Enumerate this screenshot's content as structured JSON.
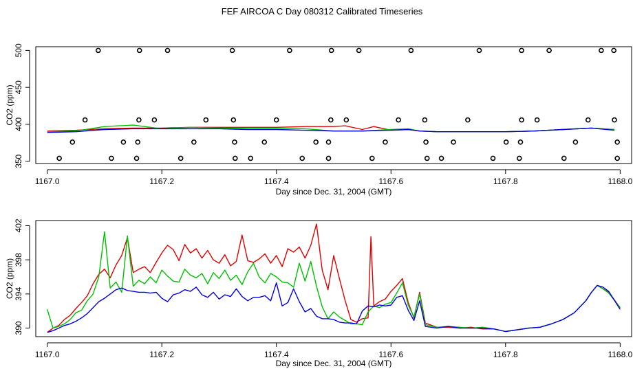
{
  "title": "FEF AIRCOA C  Day 080312  Calibrated Timeseries",
  "colors": {
    "red": "#e00000",
    "green": "#00c000",
    "blue": "#0000dd",
    "axis": "#000000"
  },
  "chart_data": [
    {
      "type": "scatter+line",
      "xlabel": "Day since Dec. 31, 2004 (GMT)",
      "ylabel": "CO2 (ppm)",
      "xlim": [
        1166.98,
        1168.02
      ],
      "ylim": [
        347,
        505
      ],
      "xticks": [
        1167.0,
        1167.2,
        1167.4,
        1167.6,
        1167.8,
        1168.0
      ],
      "xtick_labels": [
        "1167.0",
        "1167.2",
        "1167.4",
        "1167.6",
        "1167.8",
        "1168.0"
      ],
      "yticks": [
        350,
        400,
        450,
        500
      ],
      "ytick_labels": [
        "350",
        "400",
        "450",
        "500"
      ],
      "points": [
        {
          "x": 1167.089,
          "y": 500
        },
        {
          "x": 1167.161,
          "y": 500
        },
        {
          "x": 1167.21,
          "y": 500
        },
        {
          "x": 1167.323,
          "y": 500
        },
        {
          "x": 1167.423,
          "y": 500
        },
        {
          "x": 1167.496,
          "y": 500
        },
        {
          "x": 1167.544,
          "y": 500
        },
        {
          "x": 1167.635,
          "y": 500
        },
        {
          "x": 1167.754,
          "y": 500
        },
        {
          "x": 1167.828,
          "y": 500
        },
        {
          "x": 1167.876,
          "y": 500
        },
        {
          "x": 1167.967,
          "y": 500
        },
        {
          "x": 1167.989,
          "y": 500
        },
        {
          "x": 1167.066,
          "y": 406
        },
        {
          "x": 1167.16,
          "y": 406
        },
        {
          "x": 1167.187,
          "y": 406
        },
        {
          "x": 1167.277,
          "y": 406
        },
        {
          "x": 1167.325,
          "y": 406
        },
        {
          "x": 1167.4,
          "y": 406
        },
        {
          "x": 1167.495,
          "y": 406
        },
        {
          "x": 1167.522,
          "y": 406
        },
        {
          "x": 1167.613,
          "y": 406
        },
        {
          "x": 1167.659,
          "y": 406
        },
        {
          "x": 1167.734,
          "y": 406
        },
        {
          "x": 1167.828,
          "y": 406
        },
        {
          "x": 1167.855,
          "y": 406
        },
        {
          "x": 1167.944,
          "y": 406
        },
        {
          "x": 1167.99,
          "y": 406
        },
        {
          "x": 1167.044,
          "y": 376
        },
        {
          "x": 1167.133,
          "y": 376
        },
        {
          "x": 1167.158,
          "y": 376
        },
        {
          "x": 1167.256,
          "y": 376
        },
        {
          "x": 1167.327,
          "y": 376
        },
        {
          "x": 1167.379,
          "y": 376
        },
        {
          "x": 1167.469,
          "y": 376
        },
        {
          "x": 1167.491,
          "y": 376
        },
        {
          "x": 1167.59,
          "y": 376
        },
        {
          "x": 1167.661,
          "y": 376
        },
        {
          "x": 1167.709,
          "y": 376
        },
        {
          "x": 1167.801,
          "y": 376
        },
        {
          "x": 1167.826,
          "y": 376
        },
        {
          "x": 1167.922,
          "y": 376
        },
        {
          "x": 1167.995,
          "y": 376
        },
        {
          "x": 1167.021,
          "y": 354
        },
        {
          "x": 1167.112,
          "y": 354
        },
        {
          "x": 1167.156,
          "y": 354
        },
        {
          "x": 1167.233,
          "y": 354
        },
        {
          "x": 1167.328,
          "y": 354
        },
        {
          "x": 1167.355,
          "y": 354
        },
        {
          "x": 1167.445,
          "y": 354
        },
        {
          "x": 1167.491,
          "y": 354
        },
        {
          "x": 1167.567,
          "y": 354
        },
        {
          "x": 1167.663,
          "y": 354
        },
        {
          "x": 1167.688,
          "y": 354
        },
        {
          "x": 1167.778,
          "y": 354
        },
        {
          "x": 1167.824,
          "y": 354
        },
        {
          "x": 1167.902,
          "y": 354
        },
        {
          "x": 1167.995,
          "y": 354
        }
      ],
      "series": [
        {
          "name": "red",
          "color": "#e00000",
          "x": [
            1167.0,
            1167.05,
            1167.1,
            1167.15,
            1167.2,
            1167.25,
            1167.3,
            1167.35,
            1167.4,
            1167.45,
            1167.5,
            1167.52,
            1167.55,
            1167.57,
            1167.6,
            1167.63,
            1167.65,
            1167.68,
            1167.75,
            1167.8,
            1167.85,
            1167.9,
            1167.95,
            1167.99
          ],
          "values": [
            391,
            392,
            394,
            395,
            395,
            396,
            396,
            396,
            396,
            397,
            397,
            398,
            393,
            397,
            392,
            393,
            391,
            390,
            390,
            390,
            391,
            393,
            395,
            393
          ]
        },
        {
          "name": "green",
          "color": "#00c000",
          "x": [
            1167.0,
            1167.05,
            1167.1,
            1167.15,
            1167.2,
            1167.25,
            1167.3,
            1167.35,
            1167.4,
            1167.45,
            1167.5,
            1167.55,
            1167.6,
            1167.63,
            1167.65,
            1167.68,
            1167.75,
            1167.8,
            1167.85,
            1167.9,
            1167.95,
            1167.99
          ],
          "values": [
            390,
            391,
            397,
            399,
            394,
            396,
            395,
            395,
            395,
            394,
            391,
            391,
            393,
            394,
            391,
            390,
            390,
            390,
            391,
            393,
            395,
            393
          ]
        },
        {
          "name": "blue",
          "color": "#0000dd",
          "x": [
            1167.0,
            1167.05,
            1167.1,
            1167.15,
            1167.2,
            1167.25,
            1167.3,
            1167.35,
            1167.4,
            1167.45,
            1167.5,
            1167.55,
            1167.6,
            1167.63,
            1167.65,
            1167.68,
            1167.75,
            1167.8,
            1167.85,
            1167.9,
            1167.95,
            1167.99
          ],
          "values": [
            389,
            390,
            393,
            394,
            394,
            394,
            394,
            393,
            393,
            392,
            391,
            391,
            392,
            393,
            391,
            390,
            390,
            390,
            391,
            393,
            395,
            392
          ]
        }
      ]
    },
    {
      "type": "line",
      "xlabel": "Day since Dec. 31, 2004 (GMT)",
      "ylabel": "CO2 (ppm)",
      "xlim": [
        1166.98,
        1168.02
      ],
      "ylim": [
        389.0,
        402.6
      ],
      "xticks": [
        1167.0,
        1167.2,
        1167.4,
        1167.6,
        1167.8,
        1168.0
      ],
      "xtick_labels": [
        "1167.0",
        "1167.2",
        "1167.4",
        "1167.6",
        "1167.8",
        "1168.0"
      ],
      "yticks": [
        390,
        394,
        398,
        402
      ],
      "ytick_labels": [
        "390",
        "394",
        "398",
        "402"
      ],
      "series": [
        {
          "name": "red",
          "color": "#e00000",
          "x": [
            1167.0,
            1167.01,
            1167.02,
            1167.03,
            1167.04,
            1167.05,
            1167.06,
            1167.07,
            1167.08,
            1167.09,
            1167.1,
            1167.11,
            1167.12,
            1167.13,
            1167.14,
            1167.15,
            1167.16,
            1167.17,
            1167.18,
            1167.19,
            1167.2,
            1167.21,
            1167.22,
            1167.23,
            1167.24,
            1167.25,
            1167.26,
            1167.27,
            1167.28,
            1167.29,
            1167.3,
            1167.31,
            1167.32,
            1167.33,
            1167.34,
            1167.35,
            1167.36,
            1167.37,
            1167.38,
            1167.39,
            1167.4,
            1167.41,
            1167.42,
            1167.43,
            1167.44,
            1167.45,
            1167.46,
            1167.47,
            1167.48,
            1167.49,
            1167.5,
            1167.51,
            1167.52,
            1167.53,
            1167.54,
            1167.55,
            1167.56,
            1167.565,
            1167.57,
            1167.58,
            1167.59,
            1167.6,
            1167.61,
            1167.62,
            1167.63,
            1167.64,
            1167.65,
            1167.66,
            1167.68,
            1167.7,
            1167.72,
            1167.74,
            1167.76,
            1167.78,
            1167.8,
            1167.82,
            1167.84,
            1167.86,
            1167.88,
            1167.9,
            1167.92,
            1167.94,
            1167.95,
            1167.96,
            1167.97,
            1167.98,
            1168.0
          ],
          "values": [
            389.5,
            390.0,
            390.3,
            391.0,
            391.5,
            392.3,
            393.0,
            393.8,
            395.2,
            396.3,
            396.9,
            395.9,
            397.4,
            398.5,
            400.6,
            396.5,
            396.9,
            397.2,
            396.5,
            397.7,
            398.8,
            399.7,
            399.2,
            397.9,
            399.8,
            398.8,
            399.3,
            398.2,
            399.1,
            398.0,
            397.6,
            398.6,
            397.3,
            397.8,
            400.9,
            397.9,
            397.7,
            398.1,
            398.7,
            397.6,
            398.5,
            397.2,
            399.3,
            398.9,
            399.5,
            398.2,
            399.7,
            402.2,
            396.8,
            394.5,
            398.5,
            395.8,
            393.2,
            391.0,
            390.7,
            391.1,
            391.2,
            400.7,
            392.6,
            393.1,
            393.4,
            394.3,
            395.0,
            395.8,
            393.0,
            391.2,
            394.2,
            390.6,
            390.1,
            390.1,
            390.0,
            390.1,
            389.9,
            389.9,
            389.6,
            389.8,
            390.0,
            390.1,
            390.5,
            391.0,
            391.8,
            393.2,
            394.2,
            395.0,
            394.6,
            394.2,
            392.4
          ]
        },
        {
          "name": "green",
          "color": "#00c000",
          "x": [
            1167.0,
            1167.01,
            1167.02,
            1167.03,
            1167.04,
            1167.05,
            1167.06,
            1167.07,
            1167.08,
            1167.09,
            1167.1,
            1167.11,
            1167.12,
            1167.13,
            1167.14,
            1167.15,
            1167.16,
            1167.17,
            1167.18,
            1167.19,
            1167.2,
            1167.21,
            1167.22,
            1167.23,
            1167.24,
            1167.25,
            1167.26,
            1167.27,
            1167.28,
            1167.29,
            1167.3,
            1167.31,
            1167.32,
            1167.33,
            1167.34,
            1167.35,
            1167.36,
            1167.37,
            1167.38,
            1167.39,
            1167.4,
            1167.41,
            1167.42,
            1167.43,
            1167.44,
            1167.45,
            1167.46,
            1167.47,
            1167.48,
            1167.49,
            1167.5,
            1167.51,
            1167.52,
            1167.53,
            1167.54,
            1167.55,
            1167.56,
            1167.57,
            1167.58,
            1167.59,
            1167.6,
            1167.61,
            1167.62,
            1167.63,
            1167.64,
            1167.65,
            1167.66,
            1167.68,
            1167.7,
            1167.72,
            1167.74,
            1167.76,
            1167.78,
            1167.8,
            1167.82,
            1167.84,
            1167.86,
            1167.88,
            1167.9,
            1167.92,
            1167.94,
            1167.95,
            1167.96,
            1167.97,
            1167.98,
            1168.0
          ],
          "values": [
            392.2,
            390.0,
            390.2,
            390.5,
            391.0,
            391.8,
            392.1,
            393.2,
            394.0,
            396.0,
            401.3,
            394.7,
            395.4,
            394.2,
            400.8,
            394.9,
            395.6,
            395.2,
            396.0,
            395.3,
            396.8,
            396.1,
            395.5,
            395.4,
            396.9,
            396.2,
            395.9,
            396.4,
            395.2,
            396.5,
            395.8,
            396.8,
            395.6,
            396.2,
            395.1,
            396.6,
            397.6,
            396.0,
            395.3,
            396.4,
            396.0,
            395.4,
            395.3,
            394.8,
            397.6,
            395.5,
            397.8,
            394.9,
            392.5,
            391.1,
            391.9,
            391.3,
            390.9,
            390.5,
            390.5,
            390.4,
            391.9,
            392.6,
            392.4,
            392.8,
            393.0,
            394.1,
            395.3,
            392.7,
            391.3,
            394.0,
            390.4,
            390.1,
            390.2,
            390.1,
            390.0,
            390.1,
            389.9,
            389.6,
            389.8,
            390.0,
            390.1,
            390.5,
            391.0,
            391.8,
            393.2,
            394.2,
            395.0,
            394.6,
            394.1,
            392.4
          ]
        },
        {
          "name": "blue",
          "color": "#0000dd",
          "x": [
            1167.0,
            1167.01,
            1167.02,
            1167.03,
            1167.04,
            1167.05,
            1167.06,
            1167.07,
            1167.08,
            1167.09,
            1167.1,
            1167.11,
            1167.12,
            1167.13,
            1167.14,
            1167.15,
            1167.16,
            1167.17,
            1167.18,
            1167.19,
            1167.2,
            1167.21,
            1167.22,
            1167.23,
            1167.24,
            1167.25,
            1167.26,
            1167.27,
            1167.28,
            1167.29,
            1167.3,
            1167.31,
            1167.32,
            1167.33,
            1167.34,
            1167.35,
            1167.36,
            1167.37,
            1167.38,
            1167.39,
            1167.4,
            1167.41,
            1167.42,
            1167.43,
            1167.44,
            1167.45,
            1167.46,
            1167.47,
            1167.48,
            1167.49,
            1167.5,
            1167.51,
            1167.52,
            1167.53,
            1167.54,
            1167.55,
            1167.56,
            1167.57,
            1167.58,
            1167.59,
            1167.6,
            1167.61,
            1167.62,
            1167.63,
            1167.64,
            1167.65,
            1167.66,
            1167.68,
            1167.7,
            1167.72,
            1167.74,
            1167.76,
            1167.78,
            1167.8,
            1167.82,
            1167.84,
            1167.86,
            1167.88,
            1167.9,
            1167.92,
            1167.94,
            1167.95,
            1167.96,
            1167.97,
            1167.98,
            1168.0
          ],
          "values": [
            389.5,
            389.7,
            390.0,
            390.3,
            390.5,
            390.8,
            391.2,
            391.7,
            392.4,
            393.1,
            393.5,
            394.0,
            394.5,
            394.7,
            394.4,
            394.3,
            394.2,
            394.2,
            394.1,
            394.2,
            393.5,
            393.1,
            393.9,
            394.1,
            394.5,
            394.3,
            394.8,
            393.9,
            393.6,
            394.2,
            393.4,
            393.9,
            393.7,
            394.6,
            393.7,
            393.2,
            393.6,
            393.6,
            393.8,
            393.2,
            395.3,
            392.6,
            393.0,
            394.6,
            393.1,
            391.9,
            392.3,
            391.4,
            391.1,
            391.1,
            391.0,
            390.7,
            390.6,
            390.6,
            390.5,
            392.0,
            392.6,
            392.5,
            392.7,
            392.6,
            392.7,
            393.6,
            393.8,
            392.1,
            390.9,
            393.2,
            390.2,
            390.0,
            390.2,
            390.0,
            390.0,
            390.0,
            389.9,
            389.6,
            389.8,
            390.0,
            390.1,
            390.5,
            391.0,
            391.8,
            393.2,
            394.2,
            395.0,
            394.8,
            394.3,
            392.2
          ]
        }
      ]
    }
  ]
}
